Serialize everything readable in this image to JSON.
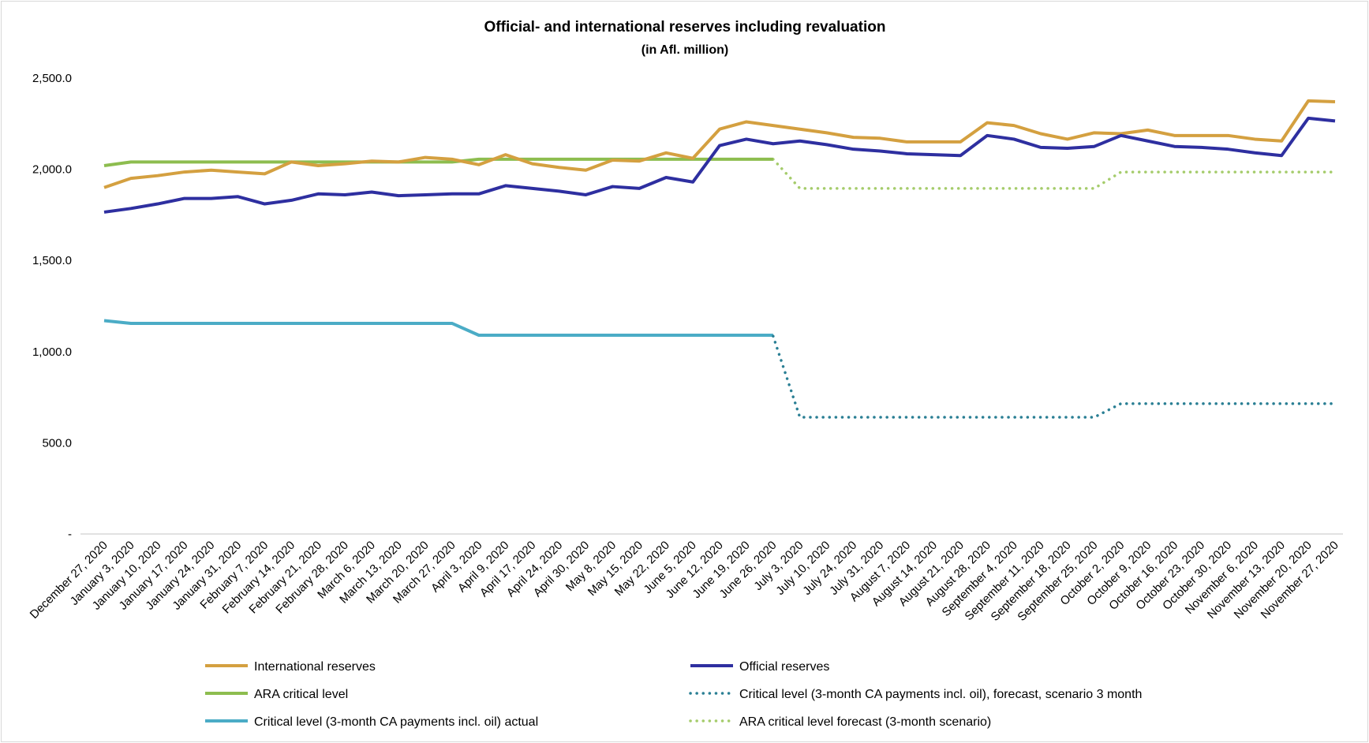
{
  "chart_data": {
    "type": "line",
    "title": "Official- and international reserves including revaluation",
    "subtitle": "(in Afl. million)",
    "xlabel": "",
    "ylabel": "",
    "ylim": [
      0,
      2500
    ],
    "ytick_values": [
      0,
      500,
      1000,
      1500,
      2000,
      2500
    ],
    "ytick_labels": [
      "-",
      "500.0",
      "1,000.0",
      "1,500.0",
      "2,000.0",
      "2,500.0"
    ],
    "grid": false,
    "legend_position": "bottom",
    "categories": [
      "December 27, 2020",
      "January 3, 2020",
      "January 10, 2020",
      "January 17, 2020",
      "January 24, 2020",
      "January 31, 2020",
      "February 7, 2020",
      "February 14, 2020",
      "February 21, 2020",
      "February 28, 2020",
      "March 6, 2020",
      "March 13, 2020",
      "March 20, 2020",
      "March 27, 2020",
      "April 3, 2020",
      "April 9, 2020",
      "April 17, 2020",
      "April 24, 2020",
      "April 30, 2020",
      "May 8, 2020",
      "May 15, 2020",
      "May 22, 2020",
      "June 5, 2020",
      "June 12, 2020",
      "June 19, 2020",
      "June 26, 2020",
      "July 3, 2020",
      "July 10, 2020",
      "July 24, 2020",
      "July 31, 2020",
      "August 7, 2020",
      "August 14, 2020",
      "August 21, 2020",
      "August 28, 2020",
      "September 4, 2020",
      "September 11, 2020",
      "September 18, 2020",
      "September 25, 2020",
      "October 2, 2020",
      "October 9, 2020",
      "October 16, 2020",
      "October 23, 2020",
      "October 30, 2020",
      "November 6, 2020",
      "November 13, 2020",
      "November 20, 2020",
      "November 27, 2020"
    ],
    "series": [
      {
        "name": "International reserves",
        "color": "#d4a040",
        "style": "solid",
        "values": [
          1900,
          1950,
          1965,
          1985,
          1995,
          1985,
          1975,
          2040,
          2020,
          2030,
          2045,
          2040,
          2065,
          2055,
          2025,
          2080,
          2030,
          2010,
          1995,
          2050,
          2045,
          2090,
          2060,
          2220,
          2260,
          2240,
          2220,
          2200,
          2175,
          2170,
          2150,
          2150,
          2150,
          2255,
          2240,
          2195,
          2165,
          2200,
          2195,
          2215,
          2185,
          2185,
          2185,
          2165,
          2155,
          2375,
          2370
        ]
      },
      {
        "name": "Official reserves",
        "color": "#2e2fa0",
        "style": "solid",
        "values": [
          1765,
          1785,
          1810,
          1840,
          1840,
          1850,
          1810,
          1830,
          1865,
          1860,
          1875,
          1855,
          1860,
          1865,
          1865,
          1910,
          1895,
          1880,
          1860,
          1905,
          1895,
          1955,
          1930,
          2130,
          2165,
          2140,
          2155,
          2135,
          2110,
          2100,
          2085,
          2080,
          2075,
          2185,
          2165,
          2120,
          2115,
          2125,
          2185,
          2155,
          2125,
          2120,
          2110,
          2090,
          2075,
          2280,
          2265
        ]
      },
      {
        "name": "ARA critical level",
        "color": "#8dbd4f",
        "style": "solid",
        "values": [
          2020,
          2040,
          2040,
          2040,
          2040,
          2040,
          2040,
          2040,
          2040,
          2040,
          2040,
          2040,
          2040,
          2040,
          2055,
          2055,
          2055,
          2055,
          2055,
          2055,
          2055,
          2055,
          2055,
          2055,
          2055,
          2055,
          null,
          null,
          null,
          null,
          null,
          null,
          null,
          null,
          null,
          null,
          null,
          null,
          null,
          null,
          null,
          null,
          null,
          null,
          null,
          null,
          null
        ]
      },
      {
        "name": "Critical level (3-month CA payments incl. oil), forecast, scenario 3 month",
        "color": "#2a7f94",
        "style": "dotted",
        "values": [
          null,
          null,
          null,
          null,
          null,
          null,
          null,
          null,
          null,
          null,
          null,
          null,
          null,
          null,
          null,
          null,
          null,
          null,
          null,
          null,
          null,
          null,
          null,
          null,
          null,
          1085,
          640,
          640,
          640,
          640,
          640,
          640,
          640,
          640,
          640,
          640,
          640,
          640,
          715,
          715,
          715,
          715,
          715,
          715,
          715,
          715,
          715
        ]
      },
      {
        "name": "Critical level (3-month CA payments incl. oil) actual",
        "color": "#4bacc6",
        "style": "solid",
        "values": [
          1170,
          1155,
          1155,
          1155,
          1155,
          1155,
          1155,
          1155,
          1155,
          1155,
          1155,
          1155,
          1155,
          1155,
          1090,
          1090,
          1090,
          1090,
          1090,
          1090,
          1090,
          1090,
          1090,
          1090,
          1090,
          1090,
          null,
          null,
          null,
          null,
          null,
          null,
          null,
          null,
          null,
          null,
          null,
          null,
          null,
          null,
          null,
          null,
          null,
          null,
          null,
          null,
          null
        ]
      },
      {
        "name": "ARA critical level forecast (3-month scenario)",
        "color": "#a5cc6b",
        "style": "dotted",
        "values": [
          null,
          null,
          null,
          null,
          null,
          null,
          null,
          null,
          null,
          null,
          null,
          null,
          null,
          null,
          null,
          null,
          null,
          null,
          null,
          null,
          null,
          null,
          null,
          null,
          null,
          2055,
          1895,
          1895,
          1895,
          1895,
          1895,
          1895,
          1895,
          1895,
          1895,
          1895,
          1895,
          1895,
          1985,
          1985,
          1985,
          1985,
          1985,
          1985,
          1985,
          1985,
          1985
        ]
      }
    ]
  }
}
